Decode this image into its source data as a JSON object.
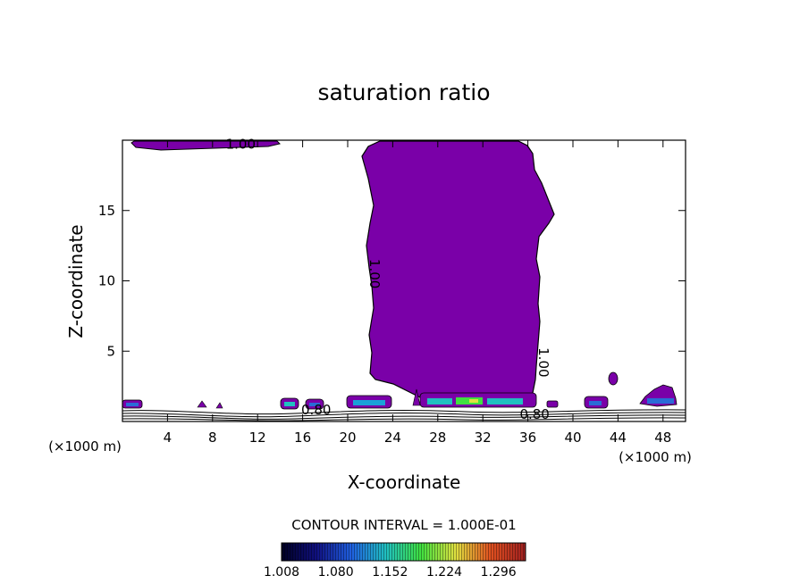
{
  "chart_data": {
    "type": "heatmap",
    "title": "saturation ratio",
    "xlabel": "X-coordinate",
    "ylabel": "Z-coordinate",
    "x_unit_left": "(×1000 m)",
    "x_unit_right": "(×1000 m)",
    "xlim": [
      0,
      50
    ],
    "ylim": [
      0,
      20
    ],
    "x_ticks": [
      4,
      8,
      12,
      16,
      20,
      24,
      28,
      32,
      36,
      40,
      44,
      48
    ],
    "y_ticks": [
      5,
      10,
      15
    ],
    "contour_interval_text": "CONTOUR INTERVAL = 1.000E-01",
    "contour_labels": [
      {
        "text": "1.00",
        "x": 10.5,
        "y": 19.4,
        "rot": 0
      },
      {
        "text": "1.00",
        "x": 22.0,
        "y": 10.5,
        "rot": 90
      },
      {
        "text": "1.00",
        "x": 37.0,
        "y": 4.2,
        "rot": 90
      },
      {
        "text": "0.80",
        "x": 17.2,
        "y": 0.5,
        "rot": 0
      },
      {
        "text": "0.80",
        "x": 36.6,
        "y": 0.2,
        "rot": 0
      }
    ],
    "colorbar": {
      "min": 1.008,
      "max": 1.332,
      "tick_labels": [
        "1.008",
        "1.080",
        "1.152",
        "1.224",
        "1.296"
      ],
      "colors": [
        "#000022",
        "#101080",
        "#2060e0",
        "#20c0c0",
        "#40e040",
        "#e0e040",
        "#e05020",
        "#a02020"
      ]
    },
    "fill_color": "#7a00a8",
    "regions": [
      {
        "name": "main-column",
        "x_range": [
          21,
          38.5
        ],
        "z_range": [
          1.2,
          19.7
        ]
      },
      {
        "name": "top-left-cap",
        "x_range": [
          0.8,
          14
        ],
        "z_range": [
          19.2,
          20
        ]
      },
      {
        "name": "right-blob",
        "x_range": [
          45.5,
          49.5
        ],
        "z_range": [
          1.0,
          2.7
        ]
      }
    ]
  }
}
